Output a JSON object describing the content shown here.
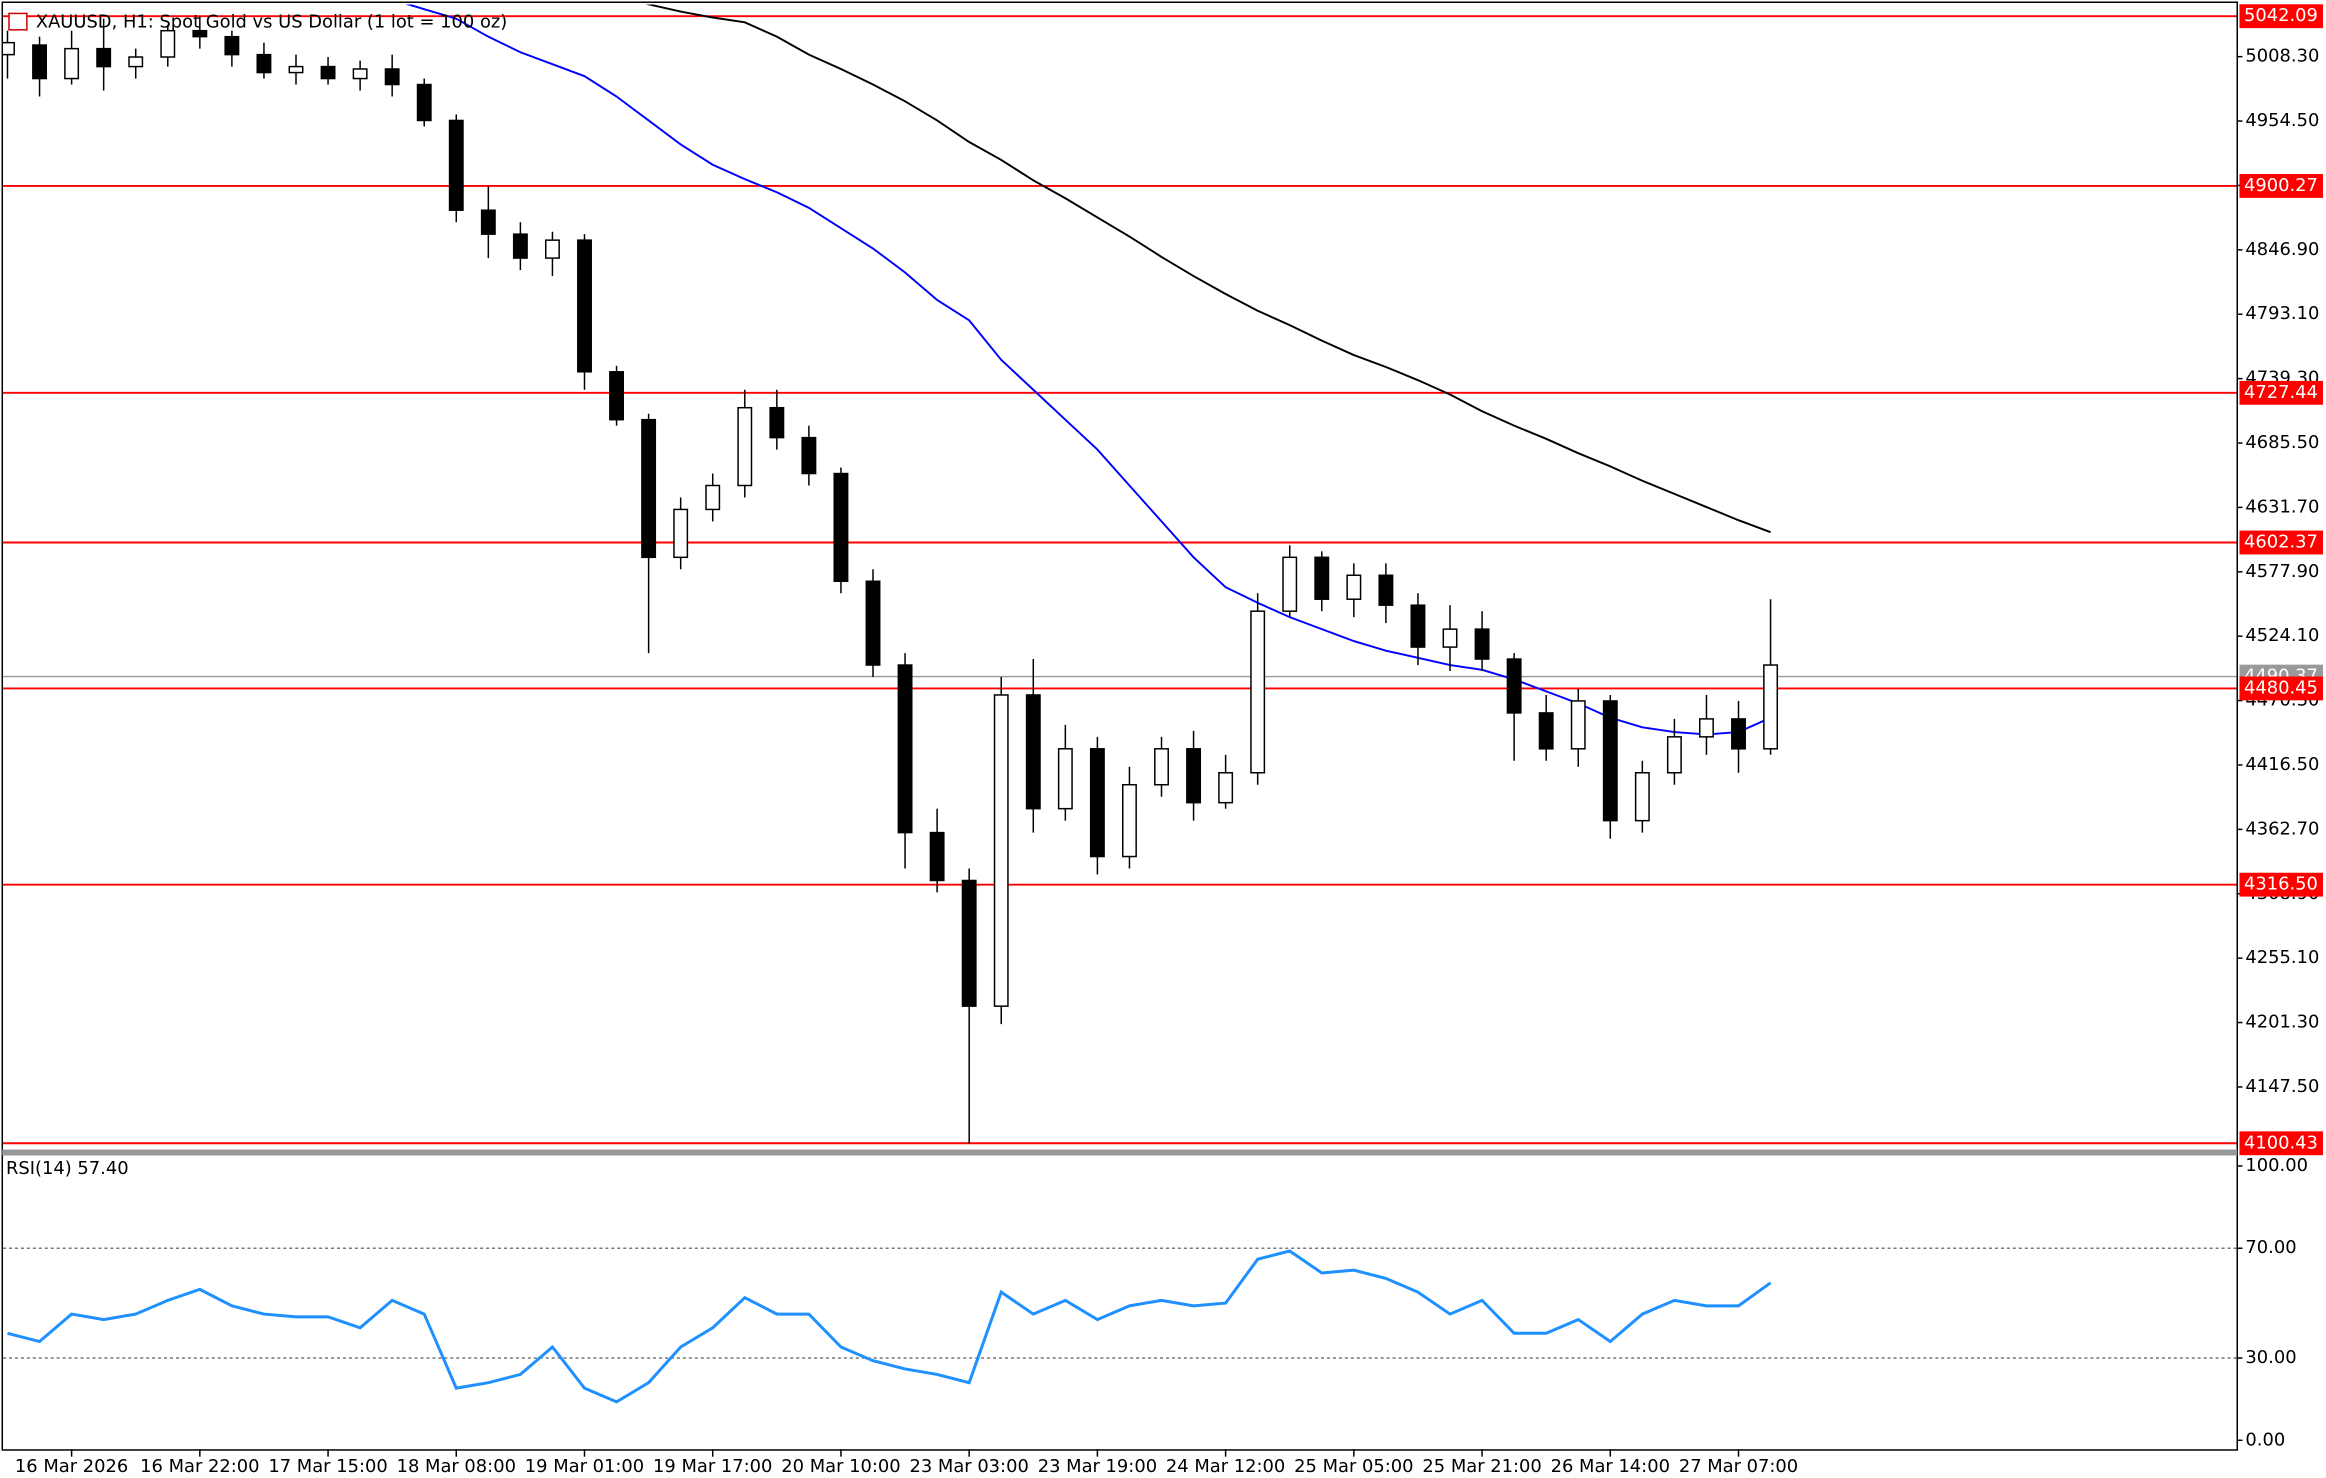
{
  "chart_data": [
    {
      "type": "candlestick",
      "title": "XAUUSD, H1:  Spot Gold vs US Dollar (1 lot = 100 oz)",
      "categories": [
        null,
        null,
        "16 Mar 2026",
        null,
        null,
        null,
        "16 Mar 22:00",
        null,
        null,
        null,
        "17 Mar 15:00",
        null,
        null,
        null,
        "18 Mar 08:00",
        null,
        null,
        null,
        "19 Mar 01:00",
        null,
        null,
        null,
        "19 Mar 17:00",
        null,
        null,
        null,
        "20 Mar 10:00",
        null,
        null,
        null,
        "23 Mar 03:00",
        null,
        null,
        null,
        "23 Mar 19:00",
        null,
        null,
        null,
        "24 Mar 12:00",
        null,
        null,
        null,
        "25 Mar 05:00",
        null,
        null,
        null,
        "25 Mar 21:00",
        null,
        null,
        null,
        "26 Mar 14:00",
        null,
        null,
        null,
        "27 Mar 07:00",
        null
      ],
      "open": [
        5010,
        5018,
        4990,
        5015,
        5000,
        5008,
        5030,
        5025,
        5010,
        4995,
        5000,
        4990,
        4998,
        4985,
        4955,
        4880,
        4860,
        4840,
        4855,
        4745,
        4705,
        4590,
        4630,
        4650,
        4715,
        4690,
        4660,
        4570,
        4500,
        4360,
        4320,
        4215,
        4475,
        4380,
        4430,
        4340,
        4400,
        4430,
        4385,
        4410,
        4545,
        4590,
        4555,
        4575,
        4550,
        4515,
        4530,
        4505,
        4460,
        4430,
        4470,
        4370,
        4410,
        4440,
        4455,
        4430
      ],
      "high": [
        5030,
        5025,
        5030,
        5040,
        5015,
        5035,
        5042,
        5030,
        5020,
        5010,
        5008,
        5005,
        5010,
        4990,
        4960,
        4900,
        4870,
        4862,
        4860,
        4750,
        4710,
        4640,
        4660,
        4730,
        4730,
        4700,
        4665,
        4580,
        4510,
        4380,
        4330,
        4490,
        4505,
        4450,
        4440,
        4415,
        4440,
        4445,
        4425,
        4560,
        4600,
        4595,
        4585,
        4585,
        4560,
        4550,
        4545,
        4510,
        4475,
        4480,
        4475,
        4420,
        4455,
        4475,
        4470,
        4555
      ],
      "low": [
        4990,
        4975,
        4985,
        4980,
        4990,
        5000,
        5015,
        5000,
        4990,
        4985,
        4985,
        4980,
        4975,
        4950,
        4870,
        4840,
        4830,
        4825,
        4730,
        4700,
        4510,
        4580,
        4620,
        4640,
        4680,
        4650,
        4560,
        4490,
        4330,
        4310,
        4100,
        4200,
        4360,
        4370,
        4325,
        4330,
        4390,
        4370,
        4380,
        4400,
        4540,
        4545,
        4540,
        4535,
        4500,
        4495,
        4495,
        4420,
        4420,
        4415,
        4355,
        4360,
        4400,
        4425,
        4410,
        4425
      ],
      "close": [
        5020,
        4990,
        5015,
        5000,
        5008,
        5030,
        5025,
        5010,
        4995,
        5000,
        4990,
        4998,
        4985,
        4955,
        4880,
        4860,
        4840,
        4855,
        4745,
        4705,
        4590,
        4630,
        4650,
        4715,
        4690,
        4660,
        4570,
        4500,
        4360,
        4320,
        4215,
        4475,
        4380,
        4430,
        4340,
        4400,
        4430,
        4385,
        4410,
        4545,
        4590,
        4555,
        4575,
        4550,
        4515,
        4530,
        4505,
        4460,
        4430,
        4470,
        4370,
        4410,
        4440,
        4455,
        4430,
        4500
      ],
      "up_color": "#ffffff",
      "down_color": "#000000",
      "series": [
        {
          "color": "#0000ff",
          "values": [
            null,
            null,
            null,
            null,
            null,
            null,
            null,
            null,
            null,
            null,
            null,
            null,
            5056,
            5048,
            5040,
            5025,
            5012,
            5002,
            4992,
            4975,
            4955,
            4935,
            4918,
            4906,
            4895,
            4882,
            4865,
            4848,
            4828,
            4805,
            4788,
            4755,
            4730,
            4705,
            4680,
            4650,
            4620,
            4590,
            4565,
            4552,
            4540,
            4530,
            4520,
            4512,
            4506,
            4500,
            4496,
            4488,
            4478,
            4468,
            4456,
            4448,
            4444,
            4442,
            4444,
            4456
          ]
        },
        {
          "color": "#000000",
          "values": [
            null,
            null,
            null,
            null,
            null,
            null,
            null,
            null,
            null,
            null,
            null,
            null,
            null,
            null,
            null,
            null,
            null,
            null,
            null,
            5060,
            5052,
            5046,
            5041,
            5037,
            5025,
            5010,
            4998,
            4985,
            4971,
            4955,
            4937,
            4922,
            4905,
            4890,
            4874,
            4858,
            4841,
            4825,
            4810,
            4796,
            4784,
            4771,
            4759,
            4749,
            4738,
            4726,
            4712,
            4700,
            4689,
            4677,
            4666,
            4654,
            4643,
            4632,
            4621,
            4611
          ]
        }
      ],
      "levels": [
        5042.09,
        4900.27,
        4727.44,
        4602.37,
        4480.45,
        {
          "value": 4316.5,
          "label": "4316.50"
        },
        4100.43
      ],
      "level_color": "#ff0000",
      "last_price": 4490.37,
      "ylim": [
        4095.2,
        5051.9
      ],
      "yticks": [
        {
          "value": 5008.3,
          "label": "5008.30"
        },
        {
          "value": 4954.5,
          "label": "4954.50"
        },
        {
          "value": 4900.7,
          "label": "4900.70"
        },
        {
          "value": 4846.9,
          "label": "4846.90"
        },
        {
          "value": 4793.1,
          "label": "4793.10"
        },
        {
          "value": 4739.3,
          "label": "4739.30"
        },
        {
          "value": 4685.5,
          "label": "4685.50"
        },
        {
          "value": 4631.7,
          "label": "4631.70"
        },
        {
          "value": 4577.9,
          "label": "4577.90"
        },
        {
          "value": 4524.1,
          "label": "4524.10"
        },
        {
          "value": 4470.3,
          "label": "4470.30"
        },
        {
          "value": 4416.5,
          "label": "4416.50"
        },
        {
          "value": 4362.7,
          "label": "4362.70"
        },
        {
          "value": 4308.9,
          "label": "4308.90"
        },
        {
          "value": 4255.1,
          "label": "4255.10"
        },
        {
          "value": 4201.3,
          "label": "4201.30"
        },
        {
          "value": 4147.5,
          "label": "4147.50"
        }
      ]
    },
    {
      "type": "line",
      "title": "RSI(14) 57.40",
      "series": [
        {
          "color": "#1e90ff",
          "values": [
            39,
            36,
            46,
            44,
            46,
            51,
            55,
            49,
            46,
            45,
            45,
            41,
            51,
            46,
            19,
            21,
            24,
            34,
            19,
            14,
            21,
            34,
            41,
            52,
            46,
            46,
            34,
            29,
            26,
            24,
            21,
            54,
            46,
            51,
            44,
            49,
            51,
            49,
            50,
            66,
            69,
            61,
            62,
            59,
            54,
            46,
            51,
            39,
            39,
            44,
            36,
            46,
            51,
            49,
            49,
            57.4
          ]
        }
      ],
      "levels": [
        70,
        30
      ],
      "ylim": [
        0,
        100
      ],
      "yticks": [
        {
          "value": 100,
          "label": "100.00"
        },
        {
          "value": 70,
          "label": "70.00"
        },
        {
          "value": 30,
          "label": "30.00"
        },
        {
          "value": 0,
          "label": "0.00"
        }
      ]
    }
  ]
}
